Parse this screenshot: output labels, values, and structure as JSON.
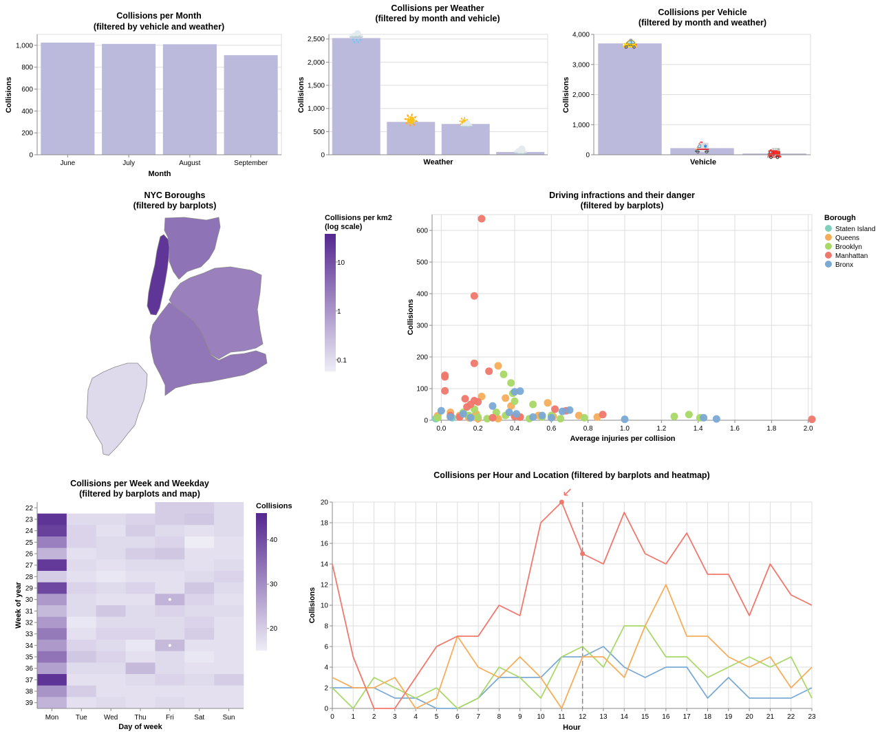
{
  "colors": {
    "bar": "#bcbadc",
    "grid": "#dddddd",
    "borough": {
      "Staten Island": "#7fcfbf",
      "Queens": "#f6ad5a",
      "Brooklyn": "#a8d867",
      "Manhattan": "#f0776c",
      "Bronx": "#7aa9d4"
    },
    "ramp": [
      "#eeedf6",
      "#5a3095"
    ]
  },
  "chart_data": [
    {
      "id": "month",
      "type": "bar",
      "title": "Collisions per Month",
      "subtitle": "(filtered by vehicle and weather)",
      "xlabel": "Month",
      "ylabel": "Collisions",
      "categories": [
        "June",
        "July",
        "August",
        "September"
      ],
      "values": [
        1025,
        1013,
        1010,
        910
      ],
      "ylim": [
        0,
        1100
      ],
      "yticks": [
        0,
        200,
        400,
        600,
        800,
        1000
      ],
      "ytick_labels": [
        "0",
        "200",
        "400",
        "600",
        "800",
        "1,000"
      ]
    },
    {
      "id": "weather",
      "type": "bar",
      "title": "Collisions per Weather",
      "subtitle": "(filtered by month and vehicle)",
      "xlabel": "Weather",
      "ylabel": "Collisions",
      "categories": [
        "rain",
        "sunny",
        "partly cloudy",
        "cloudy"
      ],
      "category_icons": [
        "🌧️",
        "☀️",
        "⛅",
        "☁️"
      ],
      "values": [
        2520,
        710,
        665,
        60
      ],
      "ylim": [
        0,
        2600
      ],
      "yticks": [
        0,
        500,
        1000,
        1500,
        2000,
        2500
      ],
      "ytick_labels": [
        "0",
        "500",
        "1,000",
        "1,500",
        "2,000",
        "2,500"
      ]
    },
    {
      "id": "vehicle",
      "type": "bar",
      "title": "Collisions per Vehicle",
      "subtitle": "(filtered by month and weather)",
      "xlabel": "Vehicle",
      "ylabel": "Collisions",
      "categories": [
        "taxi",
        "ambulance",
        "fire engine"
      ],
      "category_icons": [
        "🚕",
        "🚑",
        "🚒"
      ],
      "values": [
        3700,
        220,
        40
      ],
      "ylim": [
        0,
        4000
      ],
      "yticks": [
        0,
        1000,
        2000,
        3000,
        4000
      ],
      "ytick_labels": [
        "0",
        "1,000",
        "2,000",
        "3,000",
        "4,000"
      ]
    },
    {
      "id": "infractions",
      "type": "scatter",
      "title": "Driving infractions and their danger",
      "subtitle": "(filtered by barplots)",
      "xlabel": "Average injuries per collision",
      "ylabel": "Collisions",
      "xlim": [
        -0.05,
        2.02
      ],
      "ylim": [
        0,
        650
      ],
      "xticks": [
        0,
        0.2,
        0.4,
        0.6,
        0.8,
        1.0,
        1.2,
        1.4,
        1.6,
        1.8,
        2.0
      ],
      "xtick_labels": [
        "0.0",
        "0.2",
        "0.4",
        "0.6",
        "0.8",
        "1.0",
        "1.2",
        "1.4",
        "1.6",
        "1.8",
        "2.0"
      ],
      "yticks": [
        0,
        100,
        200,
        300,
        400,
        500,
        600
      ],
      "legend_title": "Borough",
      "legend_position": "right",
      "series": [
        {
          "name": "Staten Island",
          "points": [
            [
              -0.03,
              5
            ],
            [
              0.06,
              8
            ],
            [
              0.16,
              12
            ]
          ]
        },
        {
          "name": "Queens",
          "points": [
            [
              -0.02,
              14
            ],
            [
              0.05,
              25
            ],
            [
              0.1,
              15
            ],
            [
              0.15,
              8
            ],
            [
              0.19,
              20
            ],
            [
              0.22,
              75
            ],
            [
              0.2,
              5
            ],
            [
              0.31,
              172
            ],
            [
              0.35,
              70
            ],
            [
              0.38,
              45
            ],
            [
              0.3,
              10
            ],
            [
              0.31,
              5
            ],
            [
              0.43,
              10
            ],
            [
              0.53,
              15
            ],
            [
              0.58,
              55
            ],
            [
              0.61,
              12
            ],
            [
              0.75,
              15
            ],
            [
              0.85,
              10
            ]
          ]
        },
        {
          "name": "Brooklyn",
          "points": [
            [
              -0.02,
              8
            ],
            [
              0.12,
              25
            ],
            [
              0.15,
              15
            ],
            [
              0.18,
              35
            ],
            [
              0.2,
              10
            ],
            [
              0.25,
              5
            ],
            [
              0.3,
              25
            ],
            [
              0.34,
              145
            ],
            [
              0.38,
              118
            ],
            [
              0.4,
              60
            ],
            [
              0.39,
              85
            ],
            [
              0.35,
              15
            ],
            [
              0.5,
              50
            ],
            [
              0.55,
              10
            ],
            [
              0.6,
              15
            ],
            [
              0.65,
              5
            ],
            [
              0.78,
              8
            ],
            [
              1.27,
              12
            ],
            [
              1.35,
              18
            ],
            [
              1.41,
              8
            ],
            [
              0.48,
              5
            ]
          ]
        },
        {
          "name": "Manhattan",
          "points": [
            [
              0.22,
              637
            ],
            [
              0.18,
              393
            ],
            [
              0.18,
              180
            ],
            [
              0.02,
              142
            ],
            [
              0.02,
              137
            ],
            [
              0.02,
              93
            ],
            [
              0.26,
              155
            ],
            [
              0.13,
              68
            ],
            [
              0.18,
              62
            ],
            [
              0.16,
              50
            ],
            [
              0.2,
              58
            ],
            [
              0.14,
              42
            ],
            [
              0.1,
              10
            ],
            [
              0.28,
              8
            ],
            [
              0.4,
              12
            ],
            [
              0.43,
              10
            ],
            [
              0.62,
              35
            ],
            [
              0.68,
              30
            ],
            [
              0.88,
              18
            ],
            [
              2.02,
              3
            ],
            [
              0.05,
              15
            ]
          ]
        },
        {
          "name": "Bronx",
          "points": [
            [
              0.0,
              30
            ],
            [
              0.05,
              10
            ],
            [
              0.12,
              20
            ],
            [
              0.16,
              8
            ],
            [
              0.28,
              45
            ],
            [
              0.37,
              25
            ],
            [
              0.4,
              90
            ],
            [
              0.43,
              92
            ],
            [
              0.41,
              20
            ],
            [
              0.5,
              10
            ],
            [
              0.55,
              15
            ],
            [
              0.6,
              8
            ],
            [
              0.66,
              28
            ],
            [
              0.7,
              32
            ],
            [
              1.0,
              3
            ],
            [
              1.43,
              8
            ],
            [
              1.5,
              4
            ]
          ]
        }
      ]
    },
    {
      "id": "heatmap",
      "type": "heatmap",
      "title": "Collisions per Week and Weekday",
      "subtitle": "(filtered by barplots and map)",
      "xlabel": "Day of week",
      "ylabel": "Week of year",
      "legend_title": "Collisions",
      "legend_ticks": [
        20,
        30,
        40
      ],
      "color_range": [
        15,
        46
      ],
      "x": [
        "Mon",
        "Tue",
        "Wed",
        "Thu",
        "Fri",
        "Sat",
        "Sun"
      ],
      "y": [
        "22",
        "23",
        "24",
        "25",
        "26",
        "27",
        "28",
        "29",
        "30",
        "31",
        "32",
        "33",
        "34",
        "35",
        "36",
        "37",
        "38",
        "39"
      ],
      "values": [
        [
          null,
          null,
          null,
          null,
          20,
          20,
          18
        ],
        [
          44,
          18,
          18,
          19,
          20,
          21,
          18
        ],
        [
          42,
          19,
          17,
          20,
          18,
          17,
          18
        ],
        [
          32,
          19,
          18,
          18,
          19,
          15,
          17
        ],
        [
          24,
          17,
          18,
          20,
          21,
          17,
          17
        ],
        [
          43,
          18,
          17,
          18,
          18,
          17,
          18
        ],
        [
          20,
          17,
          16,
          17,
          17,
          18,
          19
        ],
        [
          41,
          19,
          18,
          19,
          17,
          21,
          18
        ],
        [
          28,
          18,
          17,
          17,
          24,
          19,
          17
        ],
        [
          23,
          18,
          21,
          18,
          19,
          18,
          18
        ],
        [
          28,
          16,
          18,
          18,
          18,
          19,
          17
        ],
        [
          33,
          17,
          19,
          19,
          18,
          20,
          17
        ],
        [
          28,
          19,
          18,
          16,
          23,
          17,
          17
        ],
        [
          34,
          21,
          19,
          17,
          18,
          16,
          17
        ],
        [
          27,
          18,
          18,
          23,
          18,
          17,
          17
        ],
        [
          44,
          17,
          17,
          18,
          19,
          18,
          20
        ],
        [
          29,
          20,
          17,
          17,
          17,
          17,
          17
        ],
        [
          24,
          17,
          18,
          17,
          18,
          17,
          17
        ]
      ],
      "marked_cells": [
        [
          8,
          4
        ],
        [
          12,
          4
        ]
      ]
    },
    {
      "id": "hourly",
      "type": "line",
      "title": "Collisions per Hour and Location (filtered by barplots and heatmap)",
      "xlabel": "Hour",
      "ylabel": "Collisions",
      "x": [
        0,
        1,
        2,
        3,
        4,
        5,
        6,
        7,
        8,
        9,
        10,
        11,
        12,
        13,
        14,
        15,
        16,
        17,
        18,
        19,
        20,
        21,
        22,
        23
      ],
      "ylim": [
        0,
        20
      ],
      "yticks": [
        0,
        2,
        4,
        6,
        8,
        10,
        12,
        14,
        16,
        18,
        20
      ],
      "rule_at_x": 12,
      "highlight_points": [
        [
          11,
          20
        ],
        [
          12,
          15
        ]
      ],
      "series": [
        {
          "name": "Manhattan",
          "values": [
            14,
            5,
            0,
            0,
            3,
            6,
            7,
            7,
            10,
            9,
            18,
            20,
            15,
            14,
            19,
            15,
            14,
            17,
            13,
            13,
            9,
            14,
            11,
            10
          ]
        },
        {
          "name": "Queens",
          "values": [
            3,
            2,
            2,
            3,
            0,
            1,
            7,
            4,
            3,
            5,
            3,
            0,
            5,
            5,
            3,
            8,
            12,
            7,
            7,
            5,
            4,
            5,
            2,
            4
          ]
        },
        {
          "name": "Brooklyn",
          "values": [
            2,
            0,
            3,
            2,
            1,
            2,
            0,
            1,
            4,
            3,
            1,
            5,
            6,
            4,
            8,
            8,
            5,
            5,
            3,
            4,
            5,
            4,
            5,
            1
          ]
        },
        {
          "name": "Bronx",
          "values": [
            2,
            2,
            2,
            1,
            1,
            0,
            0,
            1,
            3,
            3,
            3,
            5,
            5,
            6,
            4,
            3,
            4,
            4,
            1,
            3,
            1,
            1,
            1,
            2
          ]
        }
      ]
    }
  ],
  "map": {
    "title": "NYC Boroughs",
    "subtitle": "(filtered by barplots)",
    "legend_title": "Collisions per km2",
    "legend_subtitle": "(log scale)",
    "legend_ticks": [
      "10",
      "1",
      "0.1"
    ],
    "borough_density": {
      "Manhattan": 30,
      "Bronx": 3.5,
      "Queens": 2.2,
      "Brooklyn": 3.2,
      "Staten Island": 0.1
    }
  }
}
